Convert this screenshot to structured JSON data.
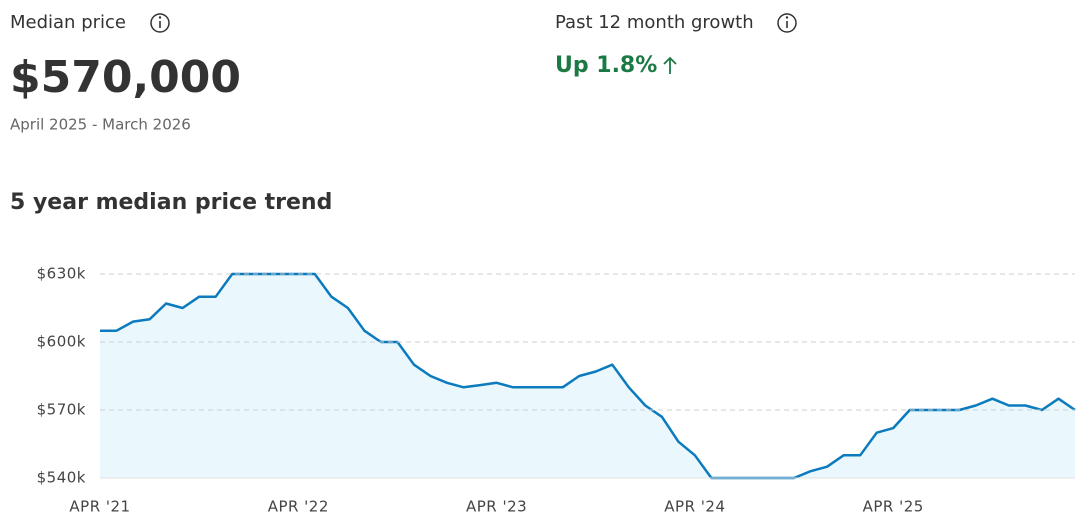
{
  "header": {
    "median_label": "Median price",
    "median_value": "$570,000",
    "period": "April 2025 - March 2026",
    "growth_label": "Past 12 month growth",
    "growth_value": "Up 1.8%"
  },
  "chart_data": {
    "type": "area",
    "title": "5 year median price trend",
    "categories": [
      "APR '21",
      null,
      null,
      null,
      null,
      null,
      null,
      null,
      null,
      null,
      null,
      null,
      "APR '22",
      null,
      null,
      null,
      null,
      null,
      null,
      null,
      null,
      null,
      null,
      null,
      "APR '23",
      null,
      null,
      null,
      null,
      null,
      null,
      null,
      null,
      null,
      null,
      null,
      "APR '24",
      null,
      null,
      null,
      null,
      null,
      null,
      null,
      null,
      null,
      null,
      null,
      "APR '25",
      null,
      null,
      null,
      null,
      null,
      null,
      null,
      null,
      null,
      null,
      null
    ],
    "series": [
      {
        "name": "Median price",
        "color": "#0b7bbd",
        "values": [
          605,
          605,
          609,
          610,
          617,
          615,
          620,
          620,
          630,
          630,
          630,
          630,
          630,
          630,
          620,
          615,
          605,
          600,
          600,
          590,
          585,
          582,
          580,
          581,
          582,
          580,
          580,
          580,
          580,
          585,
          587,
          590,
          580,
          572,
          567,
          556,
          550,
          540,
          540,
          540,
          540,
          540,
          540,
          543,
          545,
          550,
          550,
          560,
          562,
          570,
          570,
          570,
          570,
          572,
          575,
          572,
          572,
          570,
          575,
          570
        ]
      }
    ],
    "ylim": [
      540,
      630
    ],
    "yticks": [
      {
        "value": 540,
        "label": "$540k"
      },
      {
        "value": 570,
        "label": "$570k"
      },
      {
        "value": 600,
        "label": "$600k"
      },
      {
        "value": 630,
        "label": "$630k"
      }
    ],
    "grid": true,
    "fill_color": "#eaf8fd"
  }
}
